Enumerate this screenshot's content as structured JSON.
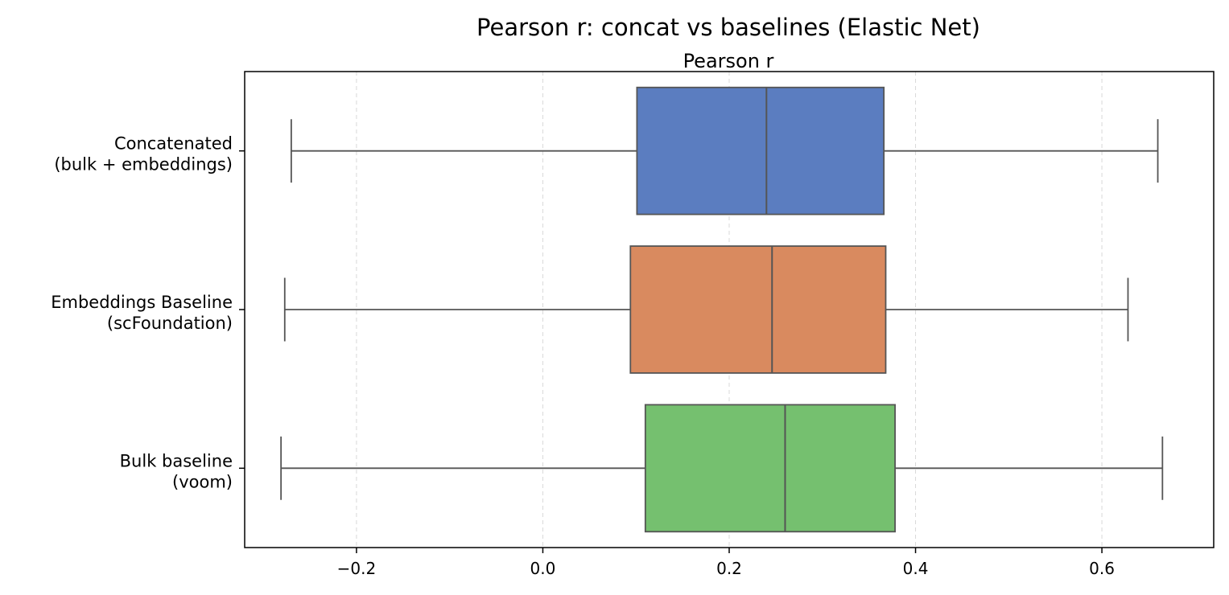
{
  "chart_data": {
    "type": "boxplot",
    "orientation": "horizontal",
    "title": "Pearson r: concat vs baselines (Elastic Net)",
    "xlabel": "Pearson r",
    "xlabel_position": "top",
    "xlim": [
      -0.32,
      0.72
    ],
    "xticks": [
      -0.2,
      0.0,
      0.2,
      0.4,
      0.6
    ],
    "xtick_labels": [
      "−0.2",
      "0.0",
      "0.2",
      "0.4",
      "0.6"
    ],
    "grid": "x-dashed",
    "categories": [
      {
        "lines": [
          "Concatenated",
          "(bulk + embeddings)"
        ],
        "color": "#5B7DC0",
        "min": -0.27,
        "q1": 0.101,
        "median": 0.24,
        "q3": 0.366,
        "max": 0.66
      },
      {
        "lines": [
          "Embeddings Baseline",
          "(scFoundation)"
        ],
        "color": "#D98A5F",
        "min": -0.277,
        "q1": 0.094,
        "median": 0.246,
        "q3": 0.368,
        "max": 0.628
      },
      {
        "lines": [
          "Bulk baseline",
          "(voom)"
        ],
        "color": "#75C06F",
        "min": -0.281,
        "q1": 0.11,
        "median": 0.26,
        "q3": 0.378,
        "max": 0.665
      }
    ]
  }
}
